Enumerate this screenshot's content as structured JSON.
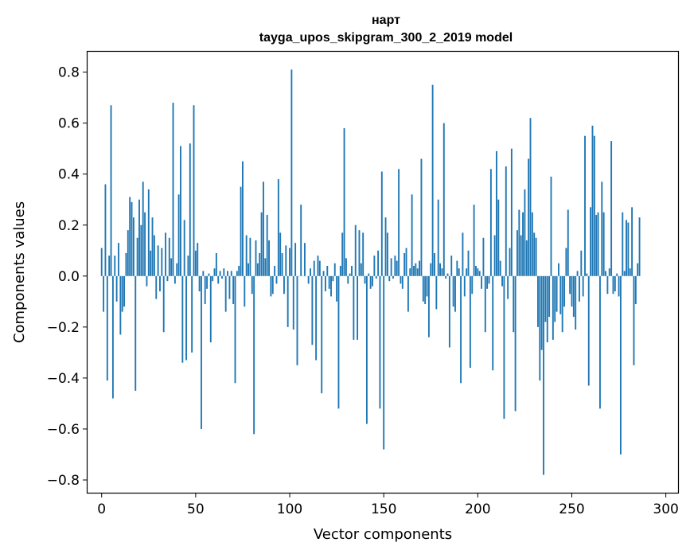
{
  "chart_data": {
    "type": "bar",
    "title_line1": "нарт",
    "title_line2": "tayga_upos_skipgram_300_2_2019 model",
    "xlabel": "Vector components",
    "ylabel": "Components values",
    "xlim": [
      -7.5,
      306.5
    ],
    "ylim": [
      -0.85,
      0.88
    ],
    "xticks": [
      0,
      50,
      100,
      150,
      200,
      250,
      300
    ],
    "xtick_labels": [
      "0",
      "50",
      "100",
      "150",
      "200",
      "250",
      "300"
    ],
    "yticks": [
      -0.8,
      -0.6,
      -0.4,
      -0.2,
      0.0,
      0.2,
      0.4,
      0.6,
      0.8
    ],
    "ytick_labels": [
      "−0.8",
      "−0.6",
      "−0.4",
      "−0.2",
      "0.0",
      "0.2",
      "0.4",
      "0.6",
      "0.8"
    ],
    "color": "#1f77b4",
    "values": [
      0.11,
      -0.14,
      0.36,
      -0.41,
      0.08,
      0.67,
      -0.48,
      0.08,
      -0.1,
      0.13,
      -0.23,
      -0.14,
      -0.12,
      0.09,
      0.18,
      0.31,
      0.29,
      0.23,
      -0.45,
      0.15,
      0.3,
      0.2,
      0.37,
      0.25,
      -0.04,
      0.34,
      0.1,
      0.23,
      0.16,
      -0.09,
      0.12,
      -0.06,
      0.11,
      -0.22,
      0.17,
      -0.02,
      0.15,
      0.07,
      0.68,
      -0.03,
      0.05,
      0.32,
      0.51,
      -0.34,
      0.22,
      -0.33,
      0.08,
      0.52,
      -0.3,
      0.67,
      0.1,
      0.13,
      -0.06,
      -0.6,
      0.02,
      -0.11,
      -0.05,
      0.01,
      -0.26,
      -0.02,
      0.03,
      0.09,
      -0.03,
      0.02,
      -0.01,
      0.03,
      -0.14,
      0.02,
      -0.09,
      0.02,
      -0.11,
      -0.42,
      0.02,
      0.04,
      0.35,
      0.45,
      -0.12,
      0.16,
      0.05,
      0.15,
      -0.07,
      -0.62,
      0.14,
      0.05,
      0.09,
      0.25,
      0.37,
      0.07,
      0.24,
      0.14,
      -0.08,
      -0.07,
      0.04,
      -0.03,
      0.38,
      0.17,
      0.09,
      -0.07,
      0.12,
      -0.2,
      0.11,
      0.81,
      -0.21,
      0.13,
      -0.35,
      0.0,
      0.28,
      0.0,
      0.13,
      0.0,
      -0.03,
      0.03,
      -0.27,
      0.06,
      -0.33,
      0.08,
      0.06,
      -0.46,
      0.02,
      -0.06,
      0.04,
      -0.05,
      -0.08,
      -0.02,
      0.05,
      -0.1,
      -0.52,
      0.04,
      0.17,
      0.58,
      0.07,
      -0.03,
      0.01,
      0.04,
      -0.25,
      0.2,
      -0.25,
      0.18,
      0.05,
      0.17,
      -0.03,
      -0.58,
      0.01,
      -0.05,
      -0.04,
      0.08,
      -0.01,
      0.1,
      -0.52,
      0.41,
      -0.68,
      0.23,
      0.17,
      -0.02,
      0.07,
      -0.01,
      0.08,
      0.06,
      0.42,
      -0.03,
      -0.05,
      0.09,
      0.11,
      -0.14,
      0.03,
      0.32,
      0.04,
      0.05,
      0.03,
      0.06,
      0.46,
      -0.1,
      -0.11,
      -0.08,
      -0.24,
      0.05,
      0.75,
      0.09,
      -0.13,
      0.3,
      0.05,
      0.03,
      0.6,
      -0.01,
      0.01,
      -0.28,
      0.08,
      -0.12,
      -0.14,
      0.06,
      0.03,
      -0.42,
      0.17,
      -0.08,
      0.03,
      0.1,
      -0.36,
      -0.07,
      0.28,
      0.04,
      0.03,
      0.02,
      -0.05,
      0.15,
      -0.22,
      -0.05,
      -0.03,
      0.42,
      -0.37,
      0.16,
      0.49,
      0.3,
      0.06,
      -0.04,
      -0.56,
      0.43,
      -0.09,
      0.11,
      0.5,
      -0.22,
      -0.53,
      0.18,
      0.26,
      0.16,
      0.25,
      0.34,
      0.14,
      0.46,
      0.62,
      0.25,
      0.17,
      0.15,
      -0.2,
      -0.41,
      -0.29,
      -0.78,
      -0.18,
      -0.26,
      -0.16,
      0.39,
      -0.25,
      -0.18,
      -0.14,
      0.05,
      -0.15,
      -0.22,
      -0.12,
      0.11,
      0.26,
      -0.07,
      -0.12,
      -0.16,
      -0.21,
      0.02,
      -0.1,
      0.1,
      -0.08,
      0.55,
      0.01,
      -0.43,
      0.27,
      0.59,
      0.55,
      0.24,
      0.25,
      -0.52,
      0.37,
      0.25,
      0.02,
      -0.07,
      0.03,
      0.53,
      -0.07,
      -0.06,
      0.01,
      -0.08,
      -0.7,
      0.25,
      0.02,
      0.22,
      0.21,
      0.03,
      0.27,
      -0.35,
      -0.11,
      0.05,
      0.23
    ]
  }
}
